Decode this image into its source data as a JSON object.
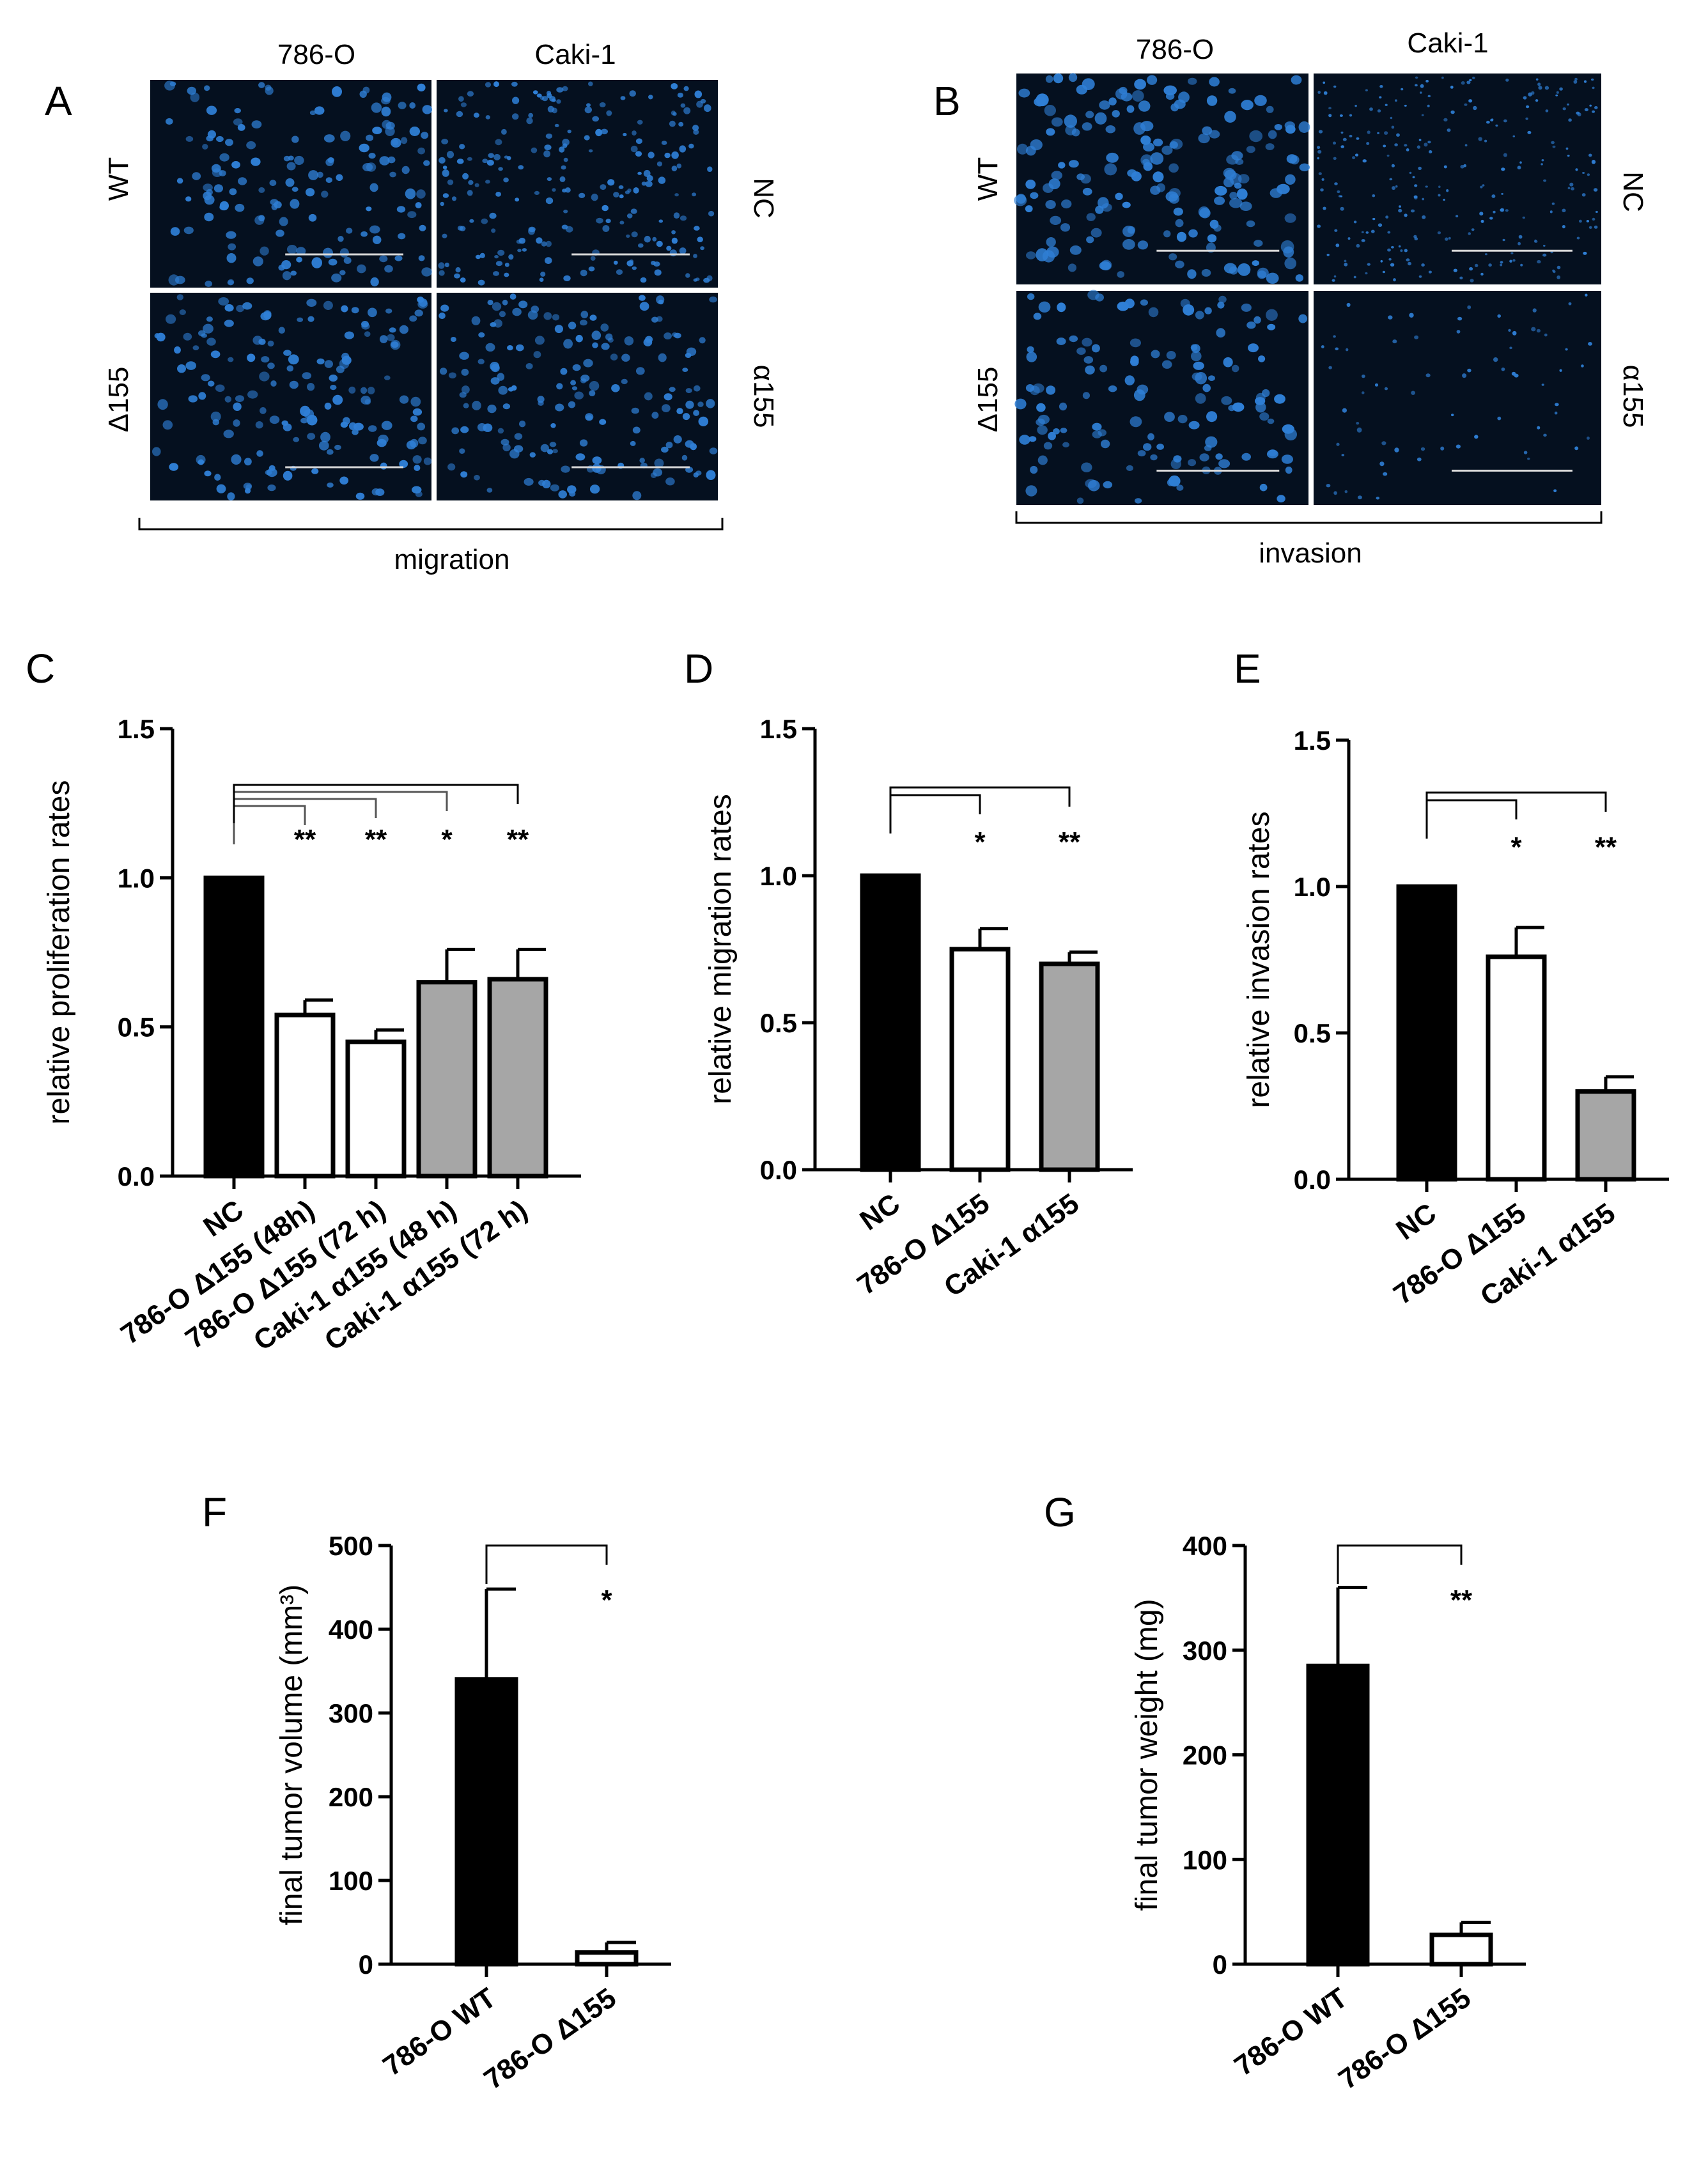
{
  "panels": {
    "A": {
      "letter": "A",
      "columns": [
        "786-O",
        "Caki-1"
      ],
      "rows_left": [
        "WT",
        "Δ155"
      ],
      "rows_right": [
        "NC",
        "α155"
      ],
      "bracket_label": "migration"
    },
    "B": {
      "letter": "B",
      "columns": [
        "786-O",
        "Caki-1"
      ],
      "rows_left": [
        "WT",
        "Δ155"
      ],
      "rows_right": [
        "NC",
        "α155"
      ],
      "bracket_label": "invasion"
    }
  },
  "colors": {
    "control": "#000000",
    "knockout": "#ffffff",
    "inhibitor": "#a6a6a6",
    "micrograph_bg": "#05101f",
    "nucleus": "#2f7fd6"
  },
  "chart_data": [
    {
      "id": "C",
      "letter": "C",
      "type": "bar",
      "ylabel": "relative proliferation rates",
      "ylim": [
        0,
        1.5
      ],
      "yticks": [
        "0.0",
        "0.5",
        "1.0",
        "1.5"
      ],
      "categories": [
        "NC",
        "786-O Δ155 (48h)",
        "786-O Δ155 (72 h)",
        "Caki-1 α155 (48 h)",
        "Caki-1 α155 (72 h)"
      ],
      "values": [
        1.0,
        0.54,
        0.45,
        0.65,
        0.66
      ],
      "errors": [
        0,
        0.05,
        0.04,
        0.11,
        0.1
      ],
      "fills": [
        "control",
        "knockout",
        "knockout",
        "inhibitor",
        "inhibitor"
      ],
      "significance": [
        "",
        "**",
        "**",
        "*",
        "**"
      ]
    },
    {
      "id": "D",
      "letter": "D",
      "type": "bar",
      "ylabel": "relative migration rates",
      "ylim": [
        0,
        1.5
      ],
      "yticks": [
        "0.0",
        "0.5",
        "1.0",
        "1.5"
      ],
      "categories": [
        "NC",
        "786-O Δ155",
        "Caki-1 α155"
      ],
      "values": [
        1.0,
        0.75,
        0.7
      ],
      "errors": [
        0,
        0.07,
        0.04
      ],
      "fills": [
        "control",
        "knockout",
        "inhibitor"
      ],
      "significance": [
        "",
        "*",
        "**"
      ]
    },
    {
      "id": "E",
      "letter": "E",
      "type": "bar",
      "ylabel": "relative invasion rates",
      "ylim": [
        0,
        1.5
      ],
      "yticks": [
        "0.0",
        "0.5",
        "1.0",
        "1.5"
      ],
      "categories": [
        "NC",
        "786-O Δ155",
        "Caki-1 α155"
      ],
      "values": [
        1.0,
        0.76,
        0.3
      ],
      "errors": [
        0,
        0.1,
        0.05
      ],
      "fills": [
        "control",
        "knockout",
        "inhibitor"
      ],
      "significance": [
        "",
        "*",
        "**"
      ]
    },
    {
      "id": "F",
      "letter": "F",
      "type": "bar",
      "ylabel": "final tumor volume (mm³)",
      "ylim": [
        0,
        500
      ],
      "yticks": [
        "0",
        "100",
        "200",
        "300",
        "400",
        "500"
      ],
      "categories": [
        "786-O WT",
        "786-O Δ155"
      ],
      "values": [
        340,
        14
      ],
      "errors": [
        108,
        12
      ],
      "fills": [
        "control",
        "knockout"
      ],
      "significance": [
        "",
        "*"
      ]
    },
    {
      "id": "G",
      "letter": "G",
      "type": "bar",
      "ylabel": "final tumor weight (mg)",
      "ylim": [
        0,
        400
      ],
      "yticks": [
        "0",
        "100",
        "200",
        "300",
        "400"
      ],
      "categories": [
        "786-O WT",
        "786-O Δ155"
      ],
      "values": [
        285,
        28
      ],
      "errors": [
        75,
        12
      ],
      "fills": [
        "control",
        "knockout"
      ],
      "significance": [
        "",
        "**"
      ]
    }
  ]
}
